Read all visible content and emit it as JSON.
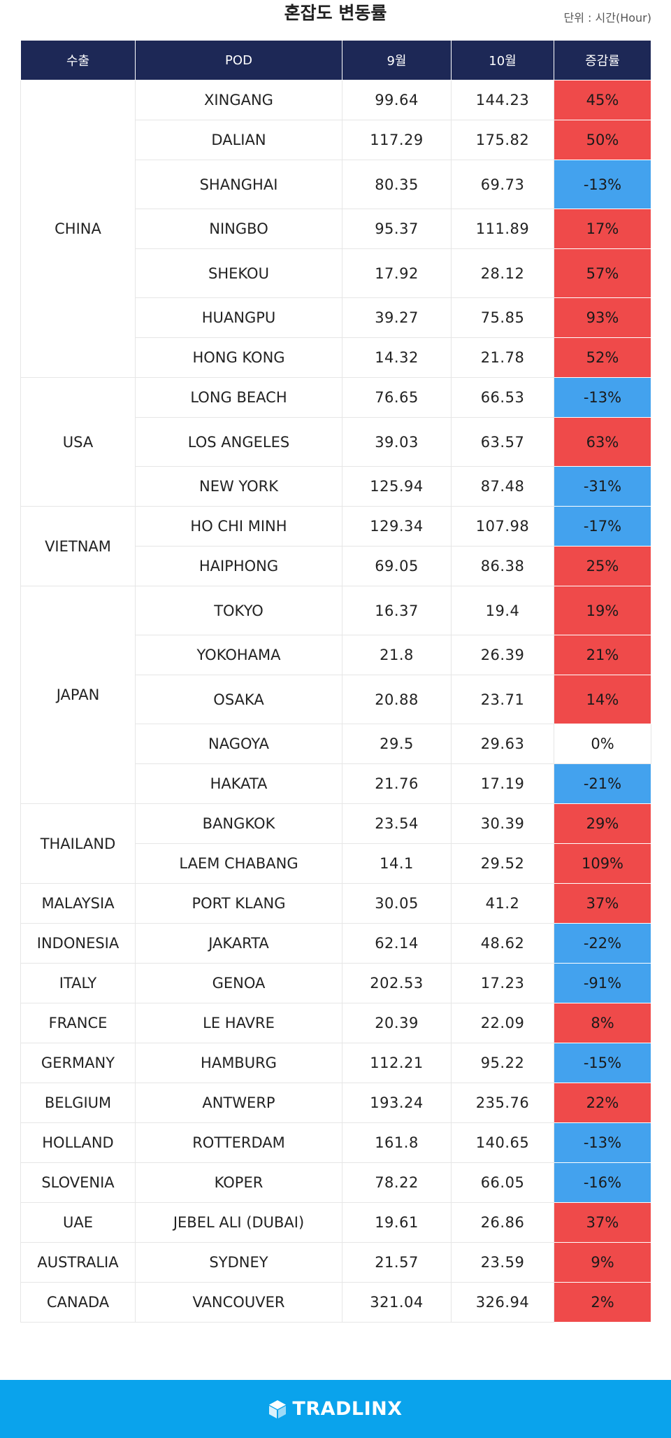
{
  "header": {
    "title": "혼잡도 변동률",
    "unit": "단위 : 시간(Hour)"
  },
  "table": {
    "columns": [
      "수출",
      "POD",
      "9월",
      "10월",
      "증감률"
    ],
    "rows": [
      {
        "country": "CHINA",
        "rowspan": 7,
        "pod": "XINGANG",
        "sep": "99.64",
        "oct": "144.23",
        "change": "45%",
        "trend": "up"
      },
      {
        "pod": "DALIAN",
        "sep": "117.29",
        "oct": "175.82",
        "change": "50%",
        "trend": "up"
      },
      {
        "pod": "SHANGHAI",
        "sep": "80.35",
        "oct": "69.73",
        "change": "-13%",
        "trend": "down"
      },
      {
        "pod": "NINGBO",
        "sep": "95.37",
        "oct": "111.89",
        "change": "17%",
        "trend": "up"
      },
      {
        "pod": "SHEKOU",
        "sep": "17.92",
        "oct": "28.12",
        "change": "57%",
        "trend": "up"
      },
      {
        "pod": "HUANGPU",
        "sep": "39.27",
        "oct": "75.85",
        "change": "93%",
        "trend": "up"
      },
      {
        "pod": "HONG KONG",
        "sep": "14.32",
        "oct": "21.78",
        "change": "52%",
        "trend": "up"
      },
      {
        "country": "USA",
        "rowspan": 3,
        "pod": "LONG BEACH",
        "sep": "76.65",
        "oct": "66.53",
        "change": "-13%",
        "trend": "down"
      },
      {
        "pod": "LOS ANGELES",
        "sep": "39.03",
        "oct": "63.57",
        "change": "63%",
        "trend": "up"
      },
      {
        "pod": "NEW YORK",
        "sep": "125.94",
        "oct": "87.48",
        "change": "-31%",
        "trend": "down"
      },
      {
        "country": "VIETNAM",
        "rowspan": 2,
        "pod": "HO CHI MINH",
        "sep": "129.34",
        "oct": "107.98",
        "change": "-17%",
        "trend": "down"
      },
      {
        "pod": "HAIPHONG",
        "sep": "69.05",
        "oct": "86.38",
        "change": "25%",
        "trend": "up"
      },
      {
        "country": "JAPAN",
        "rowspan": 5,
        "pod": "TOKYO",
        "sep": "16.37",
        "oct": "19.4",
        "change": "19%",
        "trend": "up"
      },
      {
        "pod": "YOKOHAMA",
        "sep": "21.8",
        "oct": "26.39",
        "change": "21%",
        "trend": "up"
      },
      {
        "pod": "OSAKA",
        "sep": "20.88",
        "oct": "23.71",
        "change": "14%",
        "trend": "up"
      },
      {
        "pod": "NAGOYA",
        "sep": "29.5",
        "oct": "29.63",
        "change": "0%",
        "trend": "flat"
      },
      {
        "pod": "HAKATA",
        "sep": "21.76",
        "oct": "17.19",
        "change": "-21%",
        "trend": "down"
      },
      {
        "country": "THAILAND",
        "rowspan": 2,
        "pod": "BANGKOK",
        "sep": "23.54",
        "oct": "30.39",
        "change": "29%",
        "trend": "up"
      },
      {
        "pod": "LAEM CHABANG",
        "sep": "14.1",
        "oct": "29.52",
        "change": "109%",
        "trend": "up"
      },
      {
        "country": "MALAYSIA",
        "rowspan": 1,
        "pod": "PORT KLANG",
        "sep": "30.05",
        "oct": "41.2",
        "change": "37%",
        "trend": "up"
      },
      {
        "country": "INDONESIA",
        "rowspan": 1,
        "pod": "JAKARTA",
        "sep": "62.14",
        "oct": "48.62",
        "change": "-22%",
        "trend": "down"
      },
      {
        "country": "ITALY",
        "rowspan": 1,
        "pod": "GENOA",
        "sep": "202.53",
        "oct": "17.23",
        "change": "-91%",
        "trend": "down"
      },
      {
        "country": "FRANCE",
        "rowspan": 1,
        "pod": "LE HAVRE",
        "sep": "20.39",
        "oct": "22.09",
        "change": "8%",
        "trend": "up"
      },
      {
        "country": "GERMANY",
        "rowspan": 1,
        "pod": "HAMBURG",
        "sep": "112.21",
        "oct": "95.22",
        "change": "-15%",
        "trend": "down"
      },
      {
        "country": "BELGIUM",
        "rowspan": 1,
        "pod": "ANTWERP",
        "sep": "193.24",
        "oct": "235.76",
        "change": "22%",
        "trend": "up"
      },
      {
        "country": "HOLLAND",
        "rowspan": 1,
        "pod": "ROTTERDAM",
        "sep": "161.8",
        "oct": "140.65",
        "change": "-13%",
        "trend": "down"
      },
      {
        "country": "SLOVENIA",
        "rowspan": 1,
        "pod": "KOPER",
        "sep": "78.22",
        "oct": "66.05",
        "change": "-16%",
        "trend": "down"
      },
      {
        "country": "UAE",
        "rowspan": 1,
        "pod": "JEBEL ALI (DUBAI)",
        "sep": "19.61",
        "oct": "26.86",
        "change": "37%",
        "trend": "up"
      },
      {
        "country": "AUSTRALIA",
        "rowspan": 1,
        "pod": "SYDNEY",
        "sep": "21.57",
        "oct": "23.59",
        "change": "9%",
        "trend": "up"
      },
      {
        "country": "CANADA",
        "rowspan": 1,
        "pod": "VANCOUVER",
        "sep": "321.04",
        "oct": "326.94",
        "change": "2%",
        "trend": "up"
      }
    ]
  },
  "colors": {
    "header_bg": "#1d2856",
    "increase": "#ef4a4a",
    "decrease": "#43a2ee",
    "footer_bg": "#0aa3ec"
  },
  "footer": {
    "logo_icon": "tradlinx-cube-icon",
    "logo_text": "TRADLINX"
  }
}
